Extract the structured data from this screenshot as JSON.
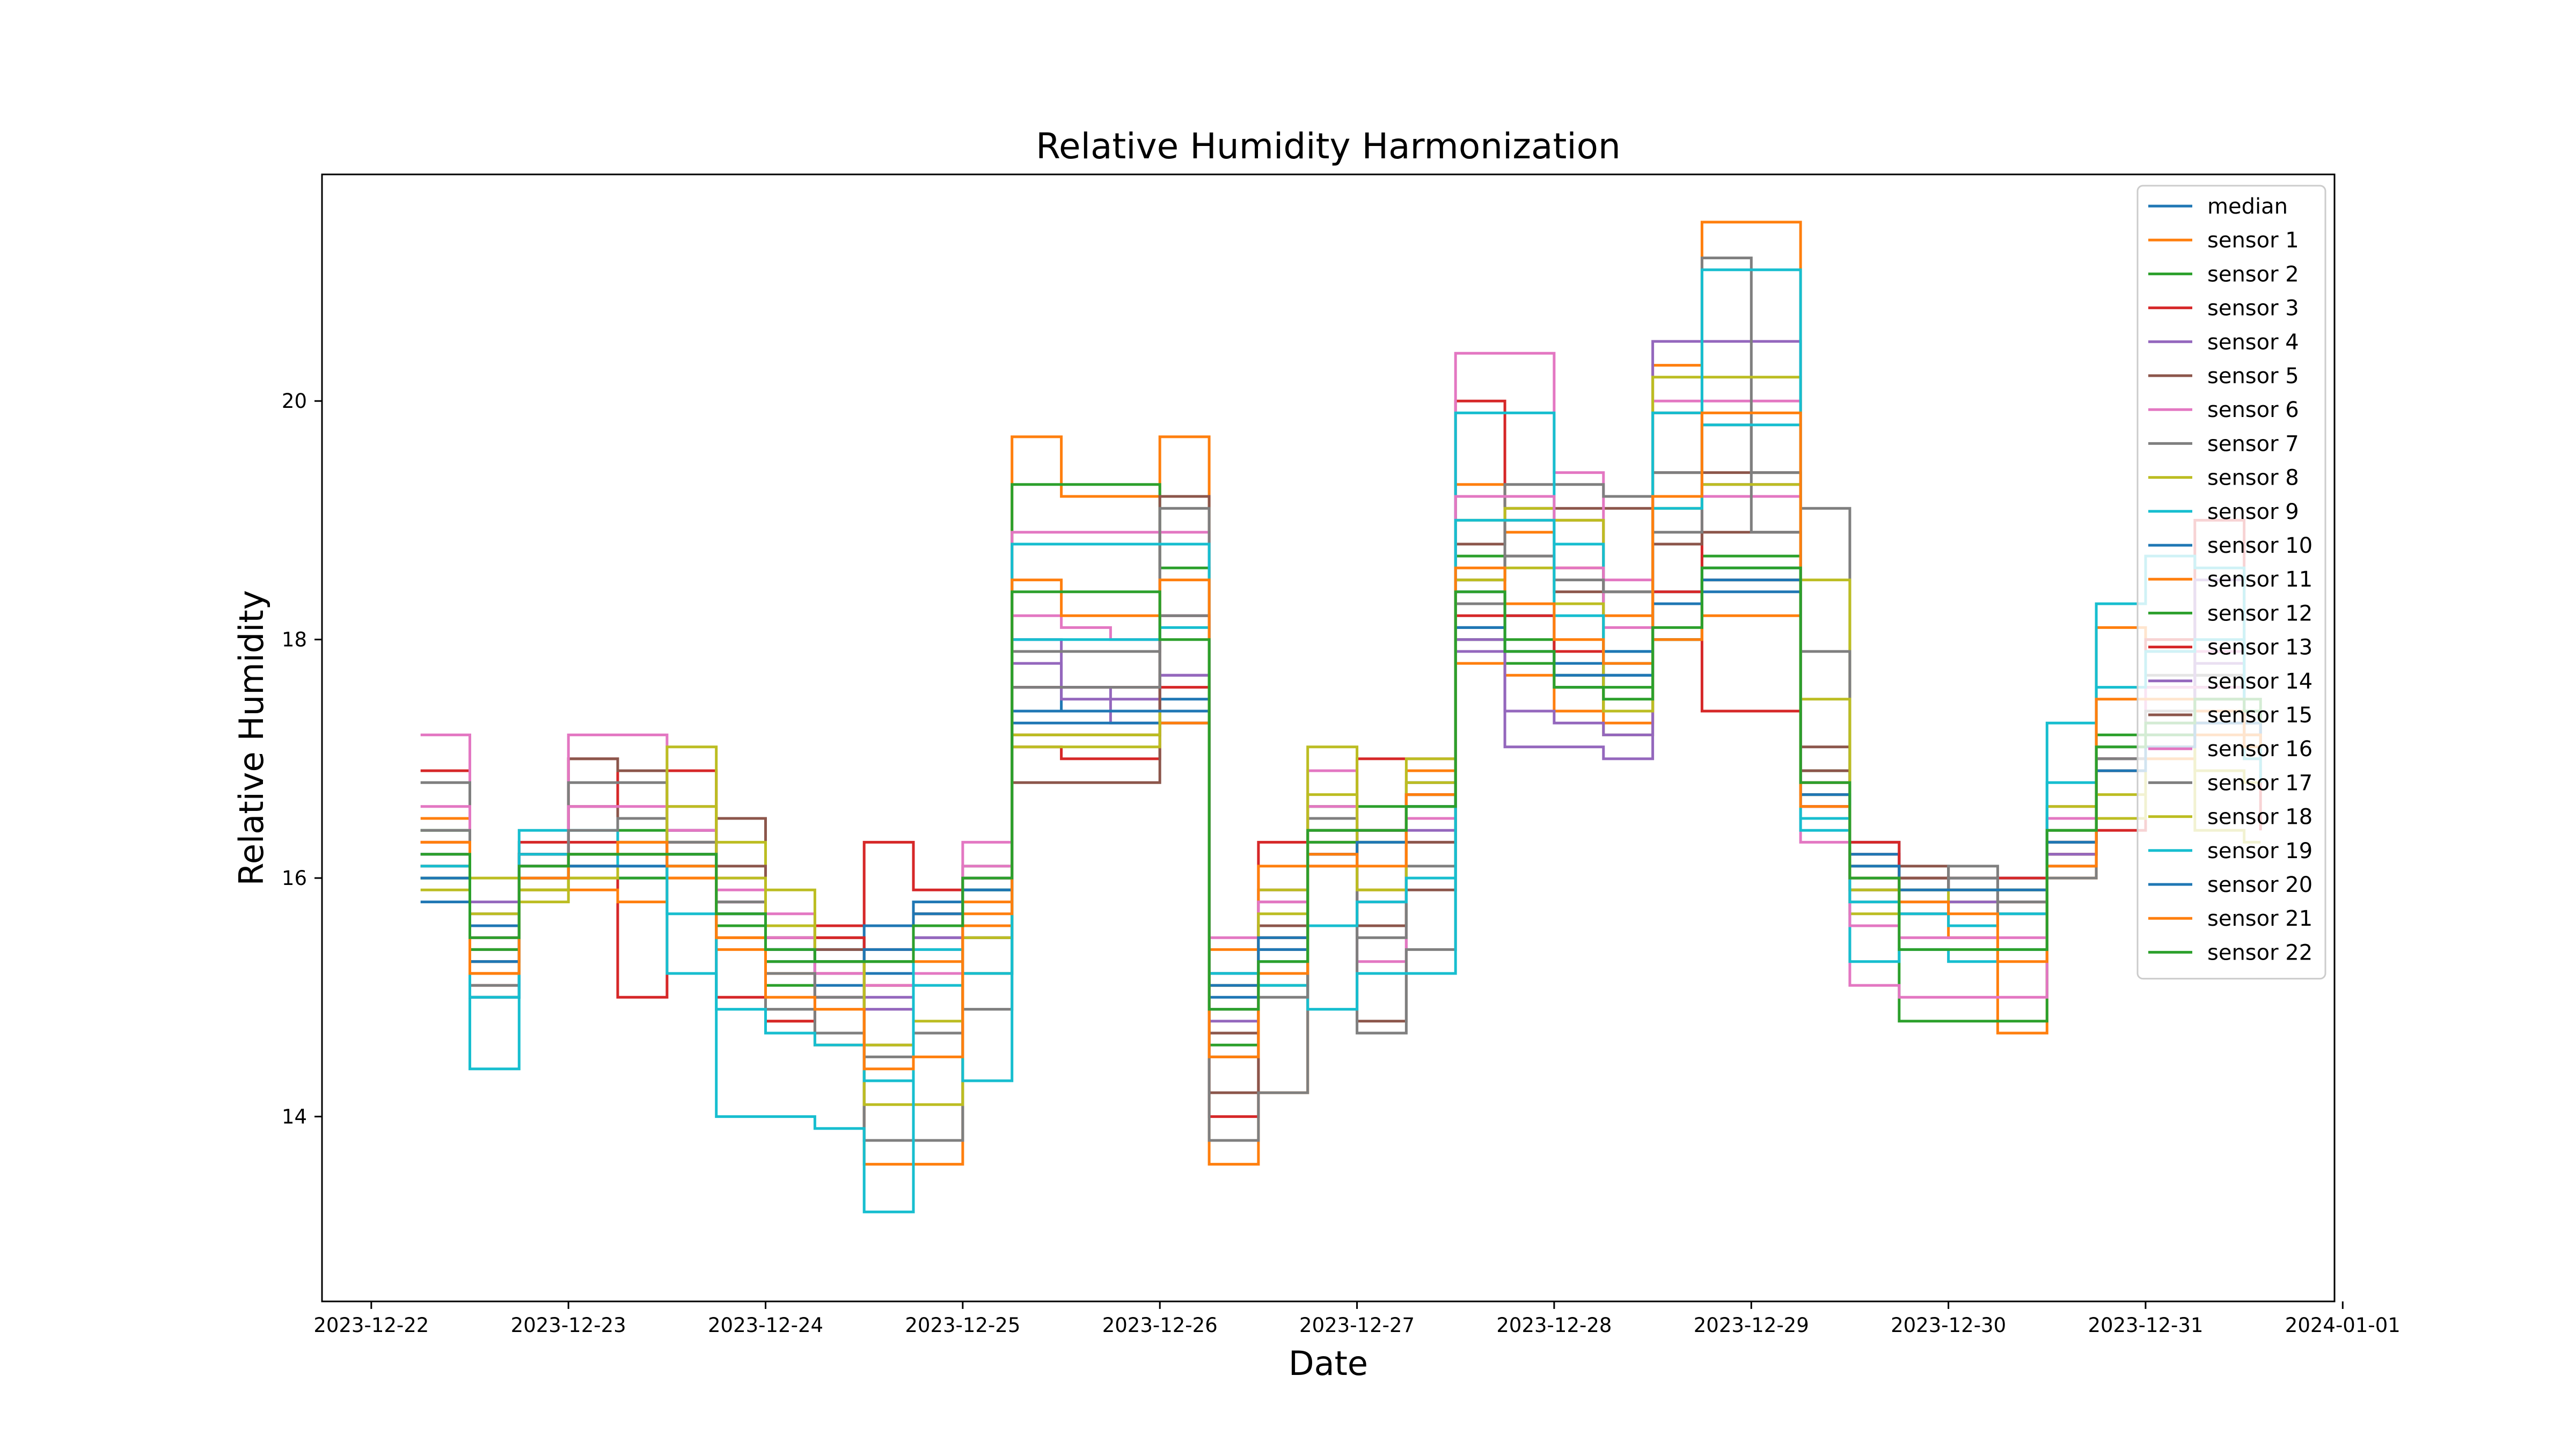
{
  "chart_data": {
    "type": "line",
    "title": "Relative Humidity Harmonization",
    "xlabel": "Date",
    "ylabel": "Relative Humidity",
    "xlim": [
      "2023-12-21T18:00",
      "2023-12-31T23:00"
    ],
    "ylim": [
      12.45,
      21.9
    ],
    "x_ticks": [
      "2023-12-22",
      "2023-12-23",
      "2023-12-24",
      "2023-12-25",
      "2023-12-26",
      "2023-12-27",
      "2023-12-28",
      "2023-12-29",
      "2023-12-30",
      "2023-12-31",
      "2024-01-01"
    ],
    "y_ticks": [
      14,
      16,
      18,
      20
    ],
    "grid": false,
    "legend_position": "top-right",
    "x": [
      "2023-12-22T06:00",
      "2023-12-22T12:00",
      "2023-12-22T18:00",
      "2023-12-23T00:00",
      "2023-12-23T06:00",
      "2023-12-23T12:00",
      "2023-12-23T18:00",
      "2023-12-24T00:00",
      "2023-12-24T06:00",
      "2023-12-24T12:00",
      "2023-12-24T18:00",
      "2023-12-25T00:00",
      "2023-12-25T06:00",
      "2023-12-25T12:00",
      "2023-12-25T18:00",
      "2023-12-26T00:00",
      "2023-12-26T06:00",
      "2023-12-26T12:00",
      "2023-12-26T18:00",
      "2023-12-27T00:00",
      "2023-12-27T06:00",
      "2023-12-27T12:00",
      "2023-12-27T18:00",
      "2023-12-28T00:00",
      "2023-12-28T06:00",
      "2023-12-28T12:00",
      "2023-12-28T18:00",
      "2023-12-29T00:00",
      "2023-12-29T06:00",
      "2023-12-29T12:00",
      "2023-12-29T18:00",
      "2023-12-30T00:00",
      "2023-12-30T06:00",
      "2023-12-30T12:00",
      "2023-12-30T18:00",
      "2023-12-31T00:00",
      "2023-12-31T06:00",
      "2023-12-31T12:00",
      "2023-12-31T14:00"
    ],
    "series": [
      {
        "name": "median",
        "color": "#1f77b4",
        "values": [
          16.2,
          15.6,
          16.1,
          16.2,
          16.3,
          16.2,
          15.6,
          15.3,
          15.1,
          15.2,
          15.6,
          15.9,
          17.6,
          17.4,
          17.4,
          17.5,
          15.0,
          15.6,
          16.2,
          16.4,
          16.8,
          18.1,
          18.2,
          17.8,
          17.7,
          18.0,
          18.4,
          18.4,
          16.6,
          16.3,
          15.9,
          16.0,
          16.0,
          16.4,
          17.0,
          17.2,
          17.4,
          17.3,
          17.2
        ]
      },
      {
        "name": "sensor 1",
        "color": "#ff7f0e",
        "values": [
          16.5,
          15.2,
          16.0,
          16.1,
          16.5,
          16.0,
          15.4,
          14.8,
          14.6,
          13.6,
          13.6,
          15.8,
          19.7,
          19.2,
          19.2,
          19.7,
          13.6,
          14.2,
          16.3,
          15.9,
          16.9,
          19.3,
          18.9,
          18.6,
          18.2,
          20.3,
          21.5,
          21.5,
          16.5,
          15.9,
          15.7,
          15.5,
          14.7,
          16.0,
          18.1,
          18.0,
          17.5,
          17.3,
          17.0
        ]
      },
      {
        "name": "sensor 2",
        "color": "#2ca02c",
        "values": [
          16.4,
          15.4,
          15.9,
          16.2,
          16.4,
          16.3,
          15.6,
          15.1,
          15.0,
          15.1,
          15.7,
          16.1,
          19.3,
          19.3,
          19.3,
          18.6,
          14.6,
          15.1,
          16.6,
          16.6,
          16.7,
          18.7,
          17.8,
          17.6,
          17.4,
          18.0,
          18.7,
          18.7,
          16.7,
          15.9,
          14.8,
          14.8,
          14.8,
          16.5,
          17.2,
          17.4,
          17.6,
          17.5,
          17.4
        ]
      },
      {
        "name": "sensor 3",
        "color": "#d62728",
        "values": [
          16.9,
          15.1,
          16.3,
          17.0,
          15.0,
          16.9,
          15.0,
          14.8,
          15.6,
          16.3,
          15.9,
          16.0,
          17.1,
          17.0,
          17.0,
          17.3,
          14.0,
          16.3,
          16.1,
          17.0,
          17.0,
          20.0,
          19.0,
          19.0,
          17.4,
          19.9,
          17.4,
          17.4,
          16.8,
          16.2,
          16.0,
          15.9,
          15.8,
          16.2,
          16.4,
          18.0,
          19.0,
          17.0,
          16.4
        ]
      },
      {
        "name": "sensor 4",
        "color": "#9467bd",
        "values": [
          16.1,
          15.8,
          16.2,
          16.1,
          16.2,
          16.4,
          15.8,
          15.5,
          15.0,
          14.9,
          15.5,
          16.0,
          18.0,
          17.5,
          17.3,
          17.7,
          14.8,
          15.9,
          16.3,
          15.6,
          16.4,
          17.9,
          17.1,
          17.1,
          17.0,
          20.5,
          20.5,
          20.5,
          16.6,
          15.9,
          15.7,
          15.8,
          15.8,
          16.1,
          17.0,
          17.4,
          18.5,
          17.3,
          17.1
        ]
      },
      {
        "name": "sensor 5",
        "color": "#8c564b",
        "values": [
          16.0,
          15.0,
          16.2,
          17.0,
          16.9,
          16.1,
          16.5,
          15.6,
          15.5,
          13.8,
          13.8,
          15.2,
          16.8,
          16.8,
          16.8,
          19.2,
          14.2,
          15.4,
          16.5,
          14.8,
          15.9,
          18.8,
          19.1,
          19.1,
          19.1,
          19.4,
          19.4,
          19.4,
          17.1,
          15.8,
          16.1,
          15.9,
          15.9,
          16.3,
          17.0,
          17.6,
          17.7,
          17.3,
          17.1
        ]
      },
      {
        "name": "sensor 6",
        "color": "#e377c2",
        "values": [
          17.2,
          15.4,
          16.1,
          17.2,
          17.2,
          16.6,
          16.0,
          15.7,
          15.0,
          15.1,
          15.2,
          16.3,
          18.9,
          18.9,
          18.9,
          18.9,
          15.5,
          15.9,
          16.9,
          15.3,
          16.3,
          20.4,
          20.4,
          19.4,
          18.5,
          20.0,
          20.0,
          20.0,
          16.3,
          15.1,
          15.0,
          15.0,
          15.0,
          16.6,
          17.0,
          17.9,
          17.9,
          17.2,
          17.0
        ]
      },
      {
        "name": "sensor 7",
        "color": "#7f7f7f",
        "values": [
          16.8,
          15.1,
          16.2,
          16.8,
          16.8,
          16.4,
          15.8,
          14.9,
          14.7,
          13.8,
          13.8,
          14.9,
          17.9,
          17.9,
          17.9,
          19.1,
          13.8,
          14.2,
          16.5,
          14.7,
          15.4,
          18.5,
          19.3,
          19.3,
          19.2,
          19.4,
          21.2,
          19.4,
          19.1,
          15.9,
          15.9,
          16.1,
          15.7,
          16.0,
          17.1,
          17.7,
          17.7,
          17.4,
          17.2
        ]
      },
      {
        "name": "sensor 8",
        "color": "#bcbd22",
        "values": [
          15.9,
          16.0,
          15.8,
          16.0,
          16.3,
          17.1,
          16.3,
          15.9,
          15.3,
          14.1,
          14.1,
          15.2,
          17.1,
          17.1,
          17.1,
          17.4,
          15.2,
          15.9,
          17.1,
          15.6,
          17.0,
          19.0,
          19.1,
          19.0,
          17.2,
          20.2,
          20.2,
          20.2,
          18.5,
          15.7,
          15.9,
          15.8,
          15.8,
          16.6,
          16.5,
          17.0,
          16.4,
          16.3,
          16.3
        ]
      },
      {
        "name": "sensor 9",
        "color": "#17becf",
        "values": [
          16.0,
          14.4,
          16.4,
          16.4,
          16.2,
          15.2,
          14.0,
          14.0,
          13.9,
          13.2,
          15.1,
          14.3,
          18.8,
          18.8,
          18.8,
          18.8,
          15.2,
          15.1,
          14.9,
          15.2,
          15.2,
          19.9,
          19.9,
          18.8,
          17.9,
          19.9,
          21.1,
          21.1,
          16.4,
          15.3,
          15.4,
          15.3,
          15.4,
          17.3,
          18.3,
          18.7,
          18.6,
          17.0,
          16.8
        ]
      },
      {
        "name": "sensor 10",
        "color": "#1f77b4",
        "values": [
          15.8,
          15.0,
          16.0,
          16.1,
          16.0,
          16.1,
          15.7,
          15.4,
          15.4,
          15.6,
          15.8,
          15.9,
          17.3,
          17.3,
          17.3,
          17.3,
          15.2,
          15.4,
          16.2,
          16.4,
          16.7,
          18.4,
          17.9,
          17.6,
          17.9,
          18.4,
          18.6,
          18.6,
          16.7,
          16.2,
          16.0,
          16.0,
          16.0,
          16.2,
          16.9,
          17.2,
          17.4,
          17.4,
          17.3
        ]
      },
      {
        "name": "sensor 11",
        "color": "#ff7f0e",
        "values": [
          16.1,
          15.2,
          15.9,
          15.9,
          15.8,
          16.0,
          15.5,
          15.2,
          15.2,
          15.1,
          15.3,
          15.6,
          17.2,
          17.2,
          17.2,
          17.3,
          15.4,
          16.1,
          16.1,
          16.3,
          16.5,
          17.8,
          17.7,
          17.4,
          17.3,
          18.0,
          18.2,
          18.2,
          16.7,
          16.1,
          15.9,
          15.9,
          15.9,
          16.2,
          16.9,
          17.0,
          17.2,
          17.1,
          17.1
        ]
      },
      {
        "name": "sensor 12",
        "color": "#2ca02c",
        "values": [
          16.0,
          15.4,
          16.0,
          16.1,
          16.0,
          16.1,
          15.6,
          15.3,
          15.3,
          15.3,
          15.6,
          15.9,
          17.4,
          17.4,
          17.4,
          17.4,
          15.1,
          15.5,
          16.3,
          16.3,
          16.6,
          18.0,
          18.0,
          17.7,
          17.6,
          18.3,
          18.5,
          18.5,
          16.9,
          16.1,
          15.9,
          15.9,
          15.9,
          16.3,
          17.0,
          17.2,
          17.4,
          17.3,
          17.2
        ]
      },
      {
        "name": "sensor 13",
        "color": "#d62728",
        "values": [
          16.3,
          15.5,
          16.2,
          16.3,
          16.2,
          16.3,
          15.8,
          15.5,
          15.5,
          15.4,
          15.7,
          16.0,
          17.6,
          17.6,
          17.6,
          17.6,
          15.1,
          15.5,
          16.2,
          16.4,
          16.7,
          18.2,
          18.2,
          17.9,
          17.8,
          18.4,
          18.5,
          18.5,
          16.6,
          16.3,
          16.0,
          16.0,
          16.0,
          16.3,
          16.9,
          17.1,
          17.3,
          17.2,
          17.1
        ]
      },
      {
        "name": "sensor 14",
        "color": "#9467bd",
        "values": [
          16.2,
          15.7,
          16.1,
          16.2,
          16.2,
          16.4,
          15.8,
          15.4,
          15.2,
          15.0,
          15.5,
          16.0,
          17.8,
          17.6,
          17.5,
          17.7,
          14.9,
          15.8,
          16.2,
          15.8,
          16.5,
          18.0,
          17.4,
          17.3,
          17.2,
          19.2,
          19.3,
          19.3,
          16.6,
          16.0,
          15.8,
          15.8,
          15.8,
          16.2,
          17.0,
          17.3,
          17.8,
          17.3,
          17.1
        ]
      },
      {
        "name": "sensor 15",
        "color": "#8c564b",
        "values": [
          16.1,
          15.3,
          16.1,
          16.6,
          16.5,
          16.2,
          16.1,
          15.5,
          15.4,
          14.6,
          14.7,
          15.5,
          17.2,
          17.2,
          17.2,
          18.2,
          14.7,
          15.6,
          16.4,
          15.6,
          16.3,
          18.5,
          18.7,
          18.4,
          18.4,
          18.8,
          18.9,
          18.9,
          16.9,
          16.0,
          16.0,
          15.9,
          15.9,
          16.3,
          17.0,
          17.4,
          17.5,
          17.3,
          17.1
        ]
      },
      {
        "name": "sensor 16",
        "color": "#e377c2",
        "values": [
          16.6,
          15.5,
          16.1,
          16.6,
          16.6,
          16.4,
          15.9,
          15.5,
          15.2,
          15.1,
          15.4,
          16.1,
          18.2,
          18.1,
          18.0,
          18.2,
          15.2,
          15.8,
          16.6,
          15.8,
          16.5,
          19.2,
          19.2,
          18.6,
          18.1,
          19.2,
          19.2,
          19.2,
          16.6,
          15.6,
          15.5,
          15.5,
          15.5,
          16.5,
          17.0,
          17.6,
          17.6,
          17.2,
          17.0
        ]
      },
      {
        "name": "sensor 17",
        "color": "#7f7f7f",
        "values": [
          16.4,
          15.3,
          16.1,
          16.4,
          16.5,
          16.3,
          15.8,
          15.2,
          15.0,
          14.5,
          14.7,
          15.5,
          17.6,
          17.6,
          17.6,
          18.2,
          14.5,
          15.0,
          16.4,
          15.5,
          16.1,
          18.3,
          18.7,
          18.5,
          18.4,
          18.9,
          19.8,
          18.9,
          17.9,
          16.0,
          15.9,
          16.0,
          15.8,
          16.1,
          17.0,
          17.4,
          17.5,
          17.3,
          17.2
        ]
      },
      {
        "name": "sensor 18",
        "color": "#bcbd22",
        "values": [
          16.0,
          15.7,
          15.9,
          16.0,
          16.2,
          16.6,
          16.0,
          15.6,
          15.3,
          14.6,
          14.8,
          15.5,
          17.2,
          17.2,
          17.2,
          17.4,
          15.1,
          15.7,
          16.7,
          15.9,
          16.8,
          18.5,
          18.6,
          18.3,
          17.4,
          19.1,
          19.3,
          19.3,
          17.5,
          15.9,
          15.9,
          15.9,
          15.9,
          16.4,
          16.7,
          17.1,
          16.9,
          16.8,
          16.8
        ]
      },
      {
        "name": "sensor 19",
        "color": "#17becf",
        "values": [
          16.1,
          15.0,
          16.2,
          16.2,
          16.1,
          15.7,
          14.9,
          14.7,
          14.6,
          14.3,
          15.4,
          15.2,
          18.0,
          18.0,
          18.0,
          18.1,
          15.2,
          15.3,
          15.6,
          15.8,
          16.0,
          19.0,
          19.0,
          18.2,
          17.8,
          19.1,
          19.8,
          19.8,
          16.5,
          15.8,
          15.7,
          15.6,
          15.7,
          16.8,
          17.6,
          17.9,
          18.0,
          17.2,
          17.0
        ]
      },
      {
        "name": "sensor 20",
        "color": "#1f77b4",
        "values": [
          16.0,
          15.3,
          16.0,
          16.1,
          16.1,
          16.2,
          15.7,
          15.4,
          15.3,
          15.4,
          15.7,
          15.9,
          17.4,
          17.4,
          17.4,
          17.4,
          15.1,
          15.5,
          16.2,
          16.3,
          16.6,
          18.1,
          17.9,
          17.7,
          17.7,
          18.3,
          18.5,
          18.5,
          16.7,
          16.1,
          15.9,
          15.9,
          15.9,
          16.3,
          16.9,
          17.1,
          17.3,
          17.3,
          17.2
        ]
      },
      {
        "name": "sensor 21",
        "color": "#ff7f0e",
        "values": [
          16.3,
          15.2,
          16.0,
          16.2,
          16.3,
          16.1,
          15.5,
          15.0,
          14.9,
          14.4,
          14.5,
          15.7,
          18.5,
          18.2,
          18.2,
          18.5,
          14.5,
          15.2,
          16.2,
          16.1,
          16.7,
          18.6,
          18.3,
          18.0,
          17.8,
          19.2,
          19.9,
          19.9,
          16.6,
          16.0,
          15.8,
          15.7,
          15.3,
          16.1,
          17.5,
          17.5,
          17.4,
          17.2,
          17.1
        ]
      },
      {
        "name": "sensor 22",
        "color": "#2ca02c",
        "values": [
          16.2,
          15.5,
          16.1,
          16.2,
          16.2,
          16.2,
          15.7,
          15.4,
          15.3,
          15.3,
          15.6,
          16.0,
          18.4,
          18.4,
          18.4,
          18.0,
          14.9,
          15.3,
          16.4,
          16.4,
          16.6,
          18.4,
          17.9,
          17.6,
          17.5,
          18.1,
          18.6,
          18.6,
          16.8,
          16.0,
          15.4,
          15.4,
          15.4,
          16.4,
          17.1,
          17.3,
          17.5,
          17.4,
          17.3
        ]
      }
    ]
  }
}
